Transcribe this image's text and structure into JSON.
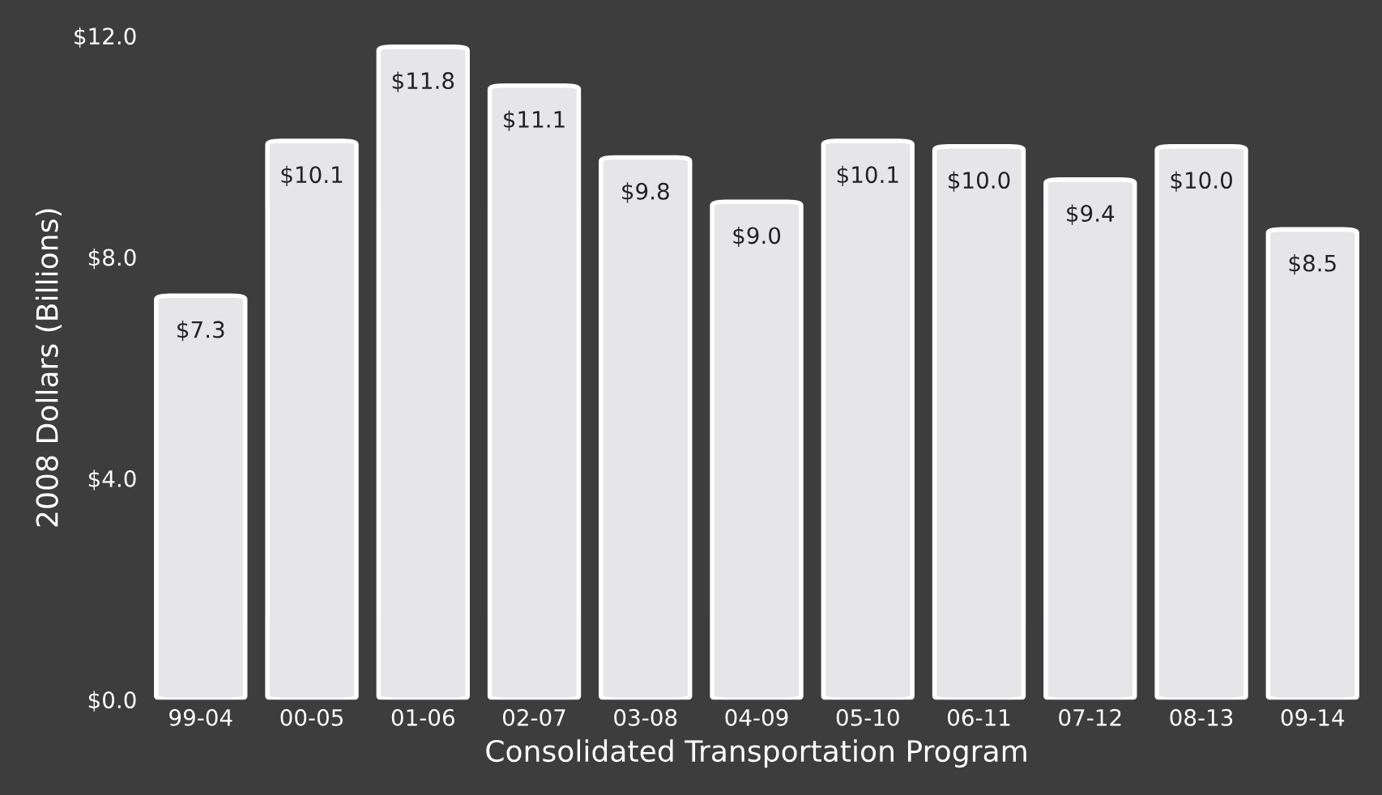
{
  "chart_data": {
    "type": "bar",
    "xlabel": "Consolidated Transportation Program",
    "ylabel": "2008 Dollars (Billions)",
    "categories": [
      "99-04",
      "00-05",
      "01-06",
      "02-07",
      "03-08",
      "04-09",
      "05-10",
      "06-11",
      "07-12",
      "08-13",
      "09-14"
    ],
    "values": [
      7.3,
      10.1,
      11.8,
      11.1,
      9.8,
      9.0,
      10.1,
      10.0,
      9.4,
      10.0,
      8.5
    ],
    "value_labels": [
      "$7.3",
      "$10.1",
      "$11.8",
      "$11.1",
      "$9.8",
      "$9.0",
      "$10.1",
      "$10.0",
      "$9.4",
      "$10.0",
      "$8.5"
    ],
    "color": "#e6e6e8",
    "ylim": [
      0,
      12
    ],
    "yticks": [
      {
        "value": 0,
        "label": "$0.0"
      },
      {
        "value": 4,
        "label": "$4.0"
      },
      {
        "value": 8,
        "label": "$8.0"
      },
      {
        "value": 12,
        "label": "$12.0"
      }
    ],
    "grid": false,
    "legend": false
  }
}
